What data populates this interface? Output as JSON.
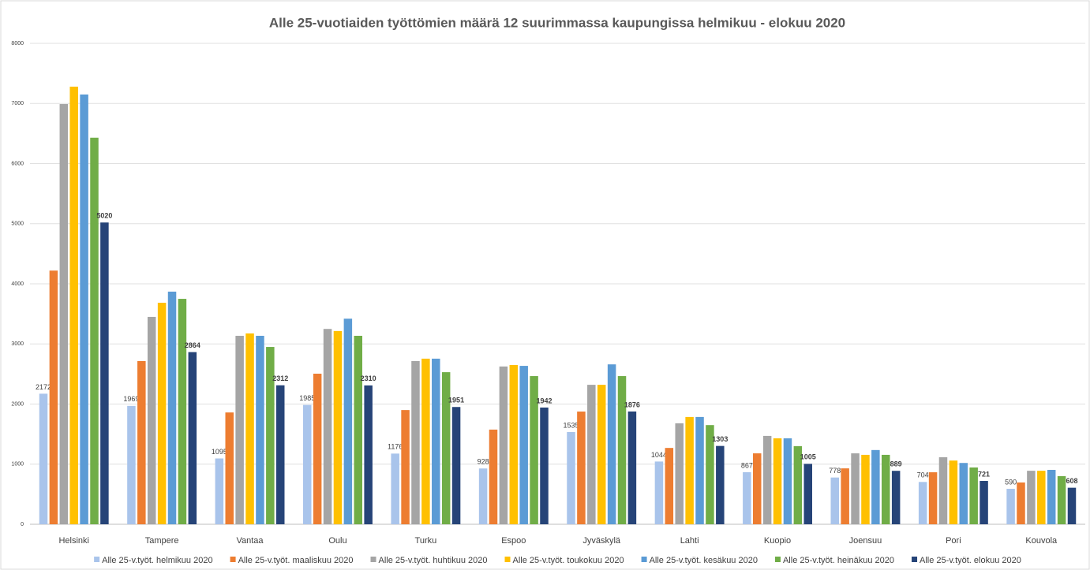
{
  "chart_data": {
    "type": "bar",
    "title": "Alle 25-vuotiaiden työttömien määrä 12 suurimmassa kaupungissa helmikuu - elokuu 2020",
    "categories": [
      "Helsinki",
      "Tampere",
      "Vantaa",
      "Oulu",
      "Turku",
      "Espoo",
      "Jyväskylä",
      "Lahti",
      "Kuopio",
      "Joensuu",
      "Pori",
      "Kouvola"
    ],
    "series": [
      {
        "name": "Alle 25-v.työt. helmikuu 2020",
        "color": "#a9c4eb",
        "data_labels": "normal",
        "values": [
          2172,
          1969,
          1095,
          1985,
          1176,
          928,
          1535,
          1044,
          867,
          778,
          704,
          590
        ]
      },
      {
        "name": "Alle 25-v.työt. maaliskuu 2020",
        "color": "#ed7d31",
        "values": [
          4220,
          2715,
          1860,
          2505,
          1900,
          1575,
          1875,
          1270,
          1180,
          930,
          865,
          695
        ]
      },
      {
        "name": "Alle 25-v.työt. huhtikuu 2020",
        "color": "#a5a5a5",
        "values": [
          6990,
          3450,
          3135,
          3250,
          2715,
          2625,
          2320,
          1680,
          1470,
          1180,
          1115,
          890
        ]
      },
      {
        "name": "Alle 25-v.työt. toukokuu 2020",
        "color": "#ffc000",
        "values": [
          7280,
          3685,
          3175,
          3215,
          2755,
          2650,
          2320,
          1785,
          1430,
          1155,
          1060,
          890
        ]
      },
      {
        "name": "Alle 25-v.työt. kesäkuu 2020",
        "color": "#5b9bd5",
        "values": [
          7150,
          3870,
          3135,
          3420,
          2755,
          2635,
          2660,
          1785,
          1430,
          1235,
          1020,
          905
        ]
      },
      {
        "name": "Alle 25-v.työt. heinäkuu 2020",
        "color": "#70ad47",
        "values": [
          6430,
          3750,
          2950,
          3135,
          2530,
          2465,
          2465,
          1650,
          1300,
          1155,
          945,
          800
        ]
      },
      {
        "name": "Alle 25-v.työt. elokuu 2020",
        "color": "#264478",
        "data_labels": "bold",
        "values": [
          5020,
          2864,
          2312,
          2310,
          1951,
          1942,
          1876,
          1303,
          1005,
          889,
          721,
          608
        ]
      }
    ],
    "ylim": [
      0,
      8000
    ],
    "yticks": [
      0,
      1000,
      2000,
      3000,
      4000,
      5000,
      6000,
      7000,
      8000
    ],
    "grid": true
  }
}
